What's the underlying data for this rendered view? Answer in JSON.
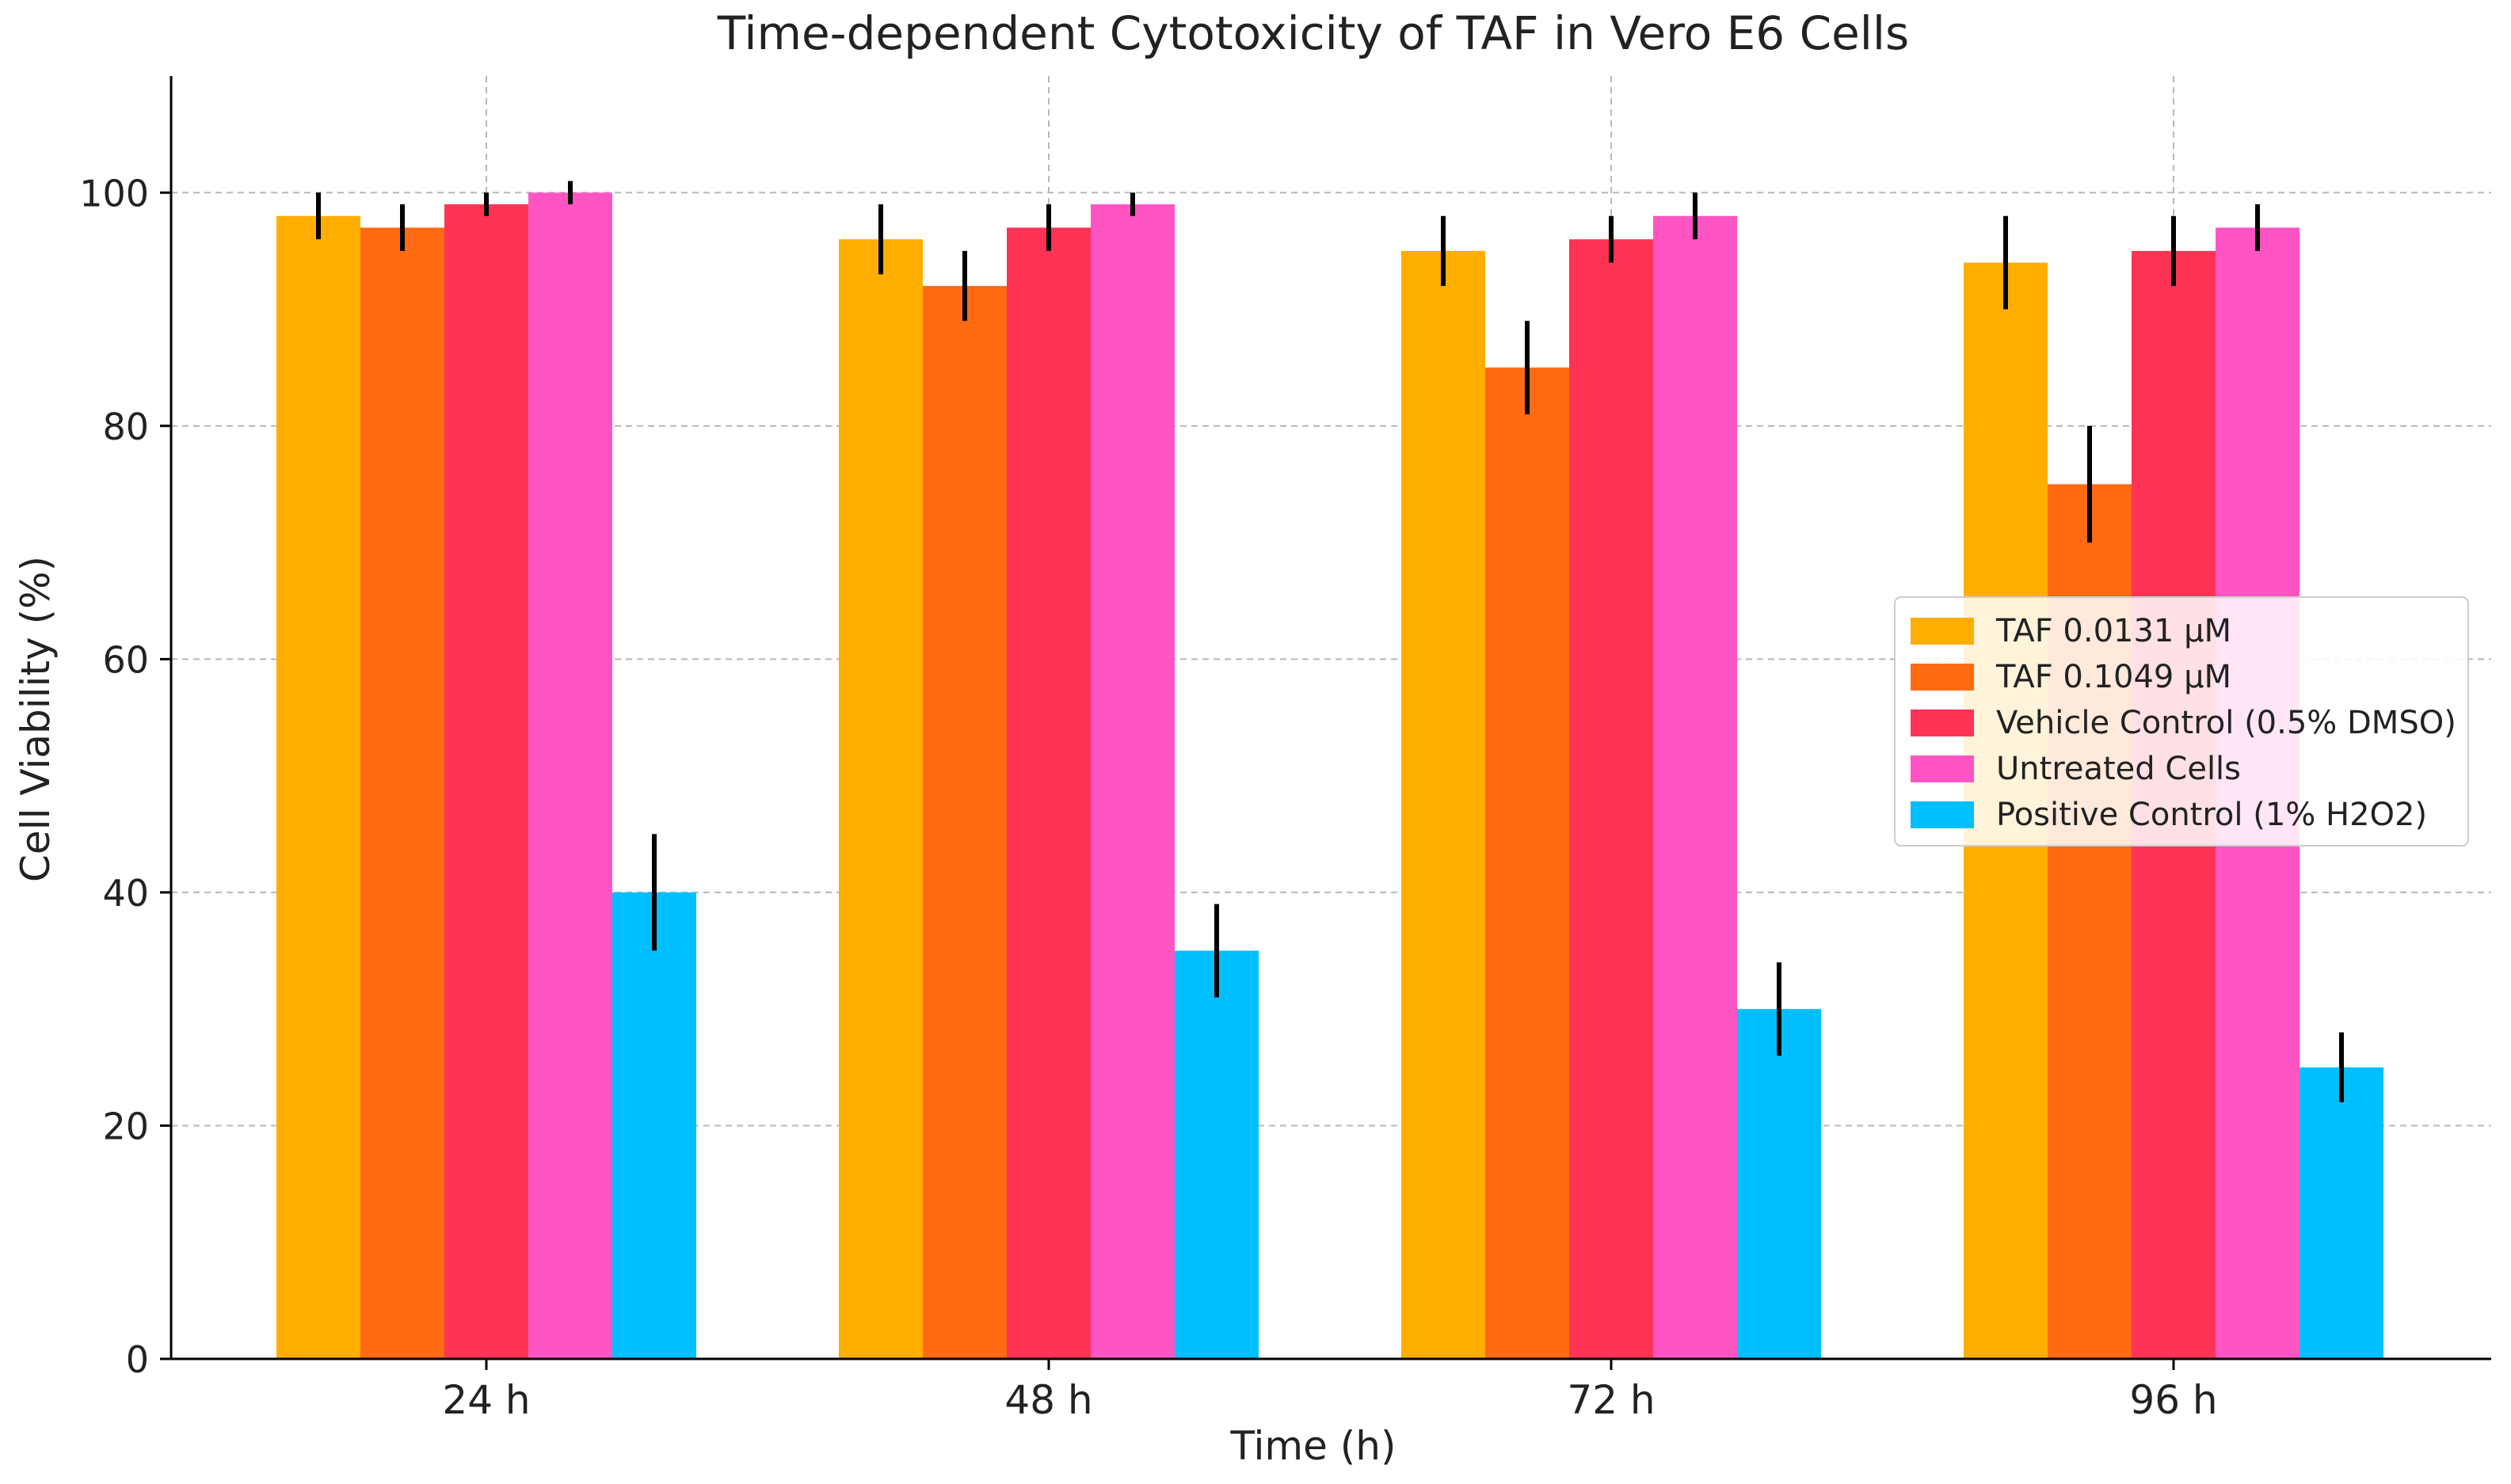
{
  "chart_data": {
    "type": "bar",
    "title": "Time-dependent Cytotoxicity of TAF in Vero E6 Cells",
    "xlabel": "Time (h)",
    "ylabel": "Cell Viability (%)",
    "categories": [
      "24 h",
      "48 h",
      "72 h",
      "96 h"
    ],
    "ylim": [
      0,
      110
    ],
    "yticks": [
      "0",
      "20",
      "40",
      "60",
      "80",
      "100"
    ],
    "grid": true,
    "legend_position": "center-right",
    "series": [
      {
        "name": "TAF 0.0131 µM",
        "color": "#FFAE00",
        "values": [
          98,
          96,
          95,
          94
        ],
        "errors": [
          2,
          3,
          3,
          4
        ]
      },
      {
        "name": "TAF 0.1049 µM",
        "color": "#FF6A13",
        "values": [
          97,
          92,
          85,
          75
        ],
        "errors": [
          2,
          3,
          4,
          5
        ]
      },
      {
        "name": "Vehicle Control (0.5% DMSO)",
        "color": "#FF3355",
        "values": [
          99,
          97,
          96,
          95
        ],
        "errors": [
          1,
          2,
          2,
          3
        ]
      },
      {
        "name": "Untreated Cells",
        "color": "#FF55C4",
        "values": [
          100,
          99,
          98,
          97
        ],
        "errors": [
          1,
          1,
          2,
          2
        ]
      },
      {
        "name": "Positive Control (1% H2O2)",
        "color": "#00BFFF",
        "values": [
          40,
          35,
          30,
          25
        ],
        "errors": [
          5,
          4,
          4,
          3
        ]
      }
    ]
  }
}
